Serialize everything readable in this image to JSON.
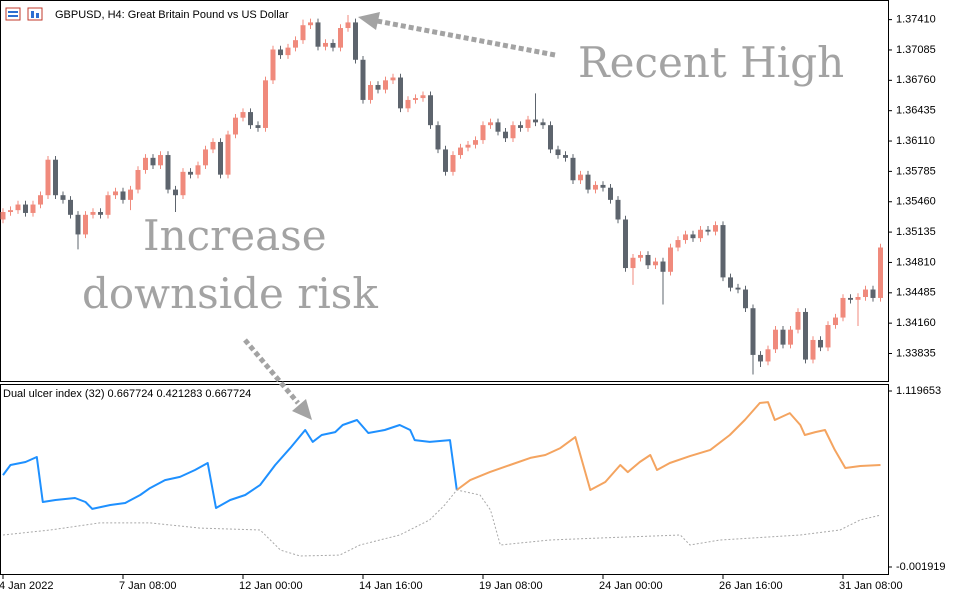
{
  "chart_data": [
    {
      "type": "candlestick",
      "title": "GBPUSD, H4:  Great Britain Pound vs US Dollar",
      "annotations": [
        "Recent High",
        "Increase",
        "downside risk"
      ],
      "up_color": "#f08a7c",
      "down_color": "#5d646d",
      "categories": [
        "4 Jan 2022",
        null,
        null,
        null,
        null,
        null,
        null,
        null,
        null,
        null,
        null,
        null,
        null,
        null,
        null,
        null,
        "7 Jan 08:00",
        null,
        null,
        null,
        null,
        null,
        null,
        null,
        null,
        null,
        null,
        null,
        null,
        null,
        null,
        null,
        "12 Jan 00:00",
        null,
        null,
        null,
        null,
        null,
        null,
        null,
        null,
        null,
        null,
        null,
        null,
        null,
        null,
        null,
        "14 Jan 16:00",
        null,
        null,
        null,
        null,
        null,
        null,
        null,
        null,
        null,
        null,
        null,
        null,
        null,
        null,
        null,
        "19 Jan 08:00",
        null,
        null,
        null,
        null,
        null,
        null,
        null,
        null,
        null,
        null,
        null,
        null,
        null,
        null,
        null,
        "24 Jan 00:00",
        null,
        null,
        null,
        null,
        null,
        null,
        null,
        null,
        null,
        null,
        null,
        null,
        null,
        null,
        null,
        "26 Jan 16:00",
        null,
        null,
        null,
        null,
        null,
        null,
        null,
        null,
        null,
        null,
        null,
        null,
        null,
        null,
        null,
        "31 Jan 08:00",
        null,
        null,
        null,
        null,
        null
      ],
      "open": [
        1.3527,
        1.3535,
        1.3537,
        1.3543,
        1.3534,
        1.3543,
        1.3553,
        1.3591,
        1.3553,
        1.3548,
        1.3532,
        1.3511,
        1.3532,
        1.3535,
        1.3532,
        1.3553,
        1.3557,
        1.3548,
        1.3559,
        1.358,
        1.3593,
        1.3585,
        1.3596,
        1.3559,
        1.3553,
        1.3578,
        1.3575,
        1.3585,
        1.3602,
        1.361,
        1.3575,
        1.3618,
        1.3636,
        1.3642,
        1.3628,
        1.3625,
        1.3676,
        1.3709,
        1.3703,
        1.3711,
        1.3719,
        1.3735,
        1.3738,
        1.3712,
        1.3716,
        1.3711,
        1.3732,
        1.3738,
        1.3698,
        1.3655,
        1.3671,
        1.3666,
        1.3676,
        1.3679,
        1.3646,
        1.3655,
        1.3657,
        1.366,
        1.3628,
        1.3602,
        1.3578,
        1.3596,
        1.3604,
        1.3607,
        1.3612,
        1.3628,
        1.3631,
        1.3621,
        1.3614,
        1.3628,
        1.3625,
        1.3634,
        1.3631,
        1.3628,
        1.3602,
        1.3596,
        1.3593,
        1.3569,
        1.3575,
        1.3559,
        1.3564,
        1.3561,
        1.3548,
        1.3527,
        1.3475,
        1.3486,
        1.3489,
        1.3478,
        1.3482,
        1.3471,
        1.3497,
        1.3505,
        1.3511,
        1.3507,
        1.3516,
        1.3514,
        1.3521,
        1.3465,
        1.3454,
        1.3452,
        1.3432,
        1.3382,
        1.3375,
        1.3388,
        1.3409,
        1.3393,
        1.3409,
        1.3428,
        1.3377,
        1.3398,
        1.339,
        1.3414,
        1.3422,
        1.3443,
        1.3441,
        1.3444,
        1.3452,
        1.3443
      ],
      "high": [
        1.3539,
        1.3541,
        1.3547,
        1.3547,
        1.3547,
        1.3557,
        1.3595,
        1.3595,
        1.3557,
        1.3552,
        1.3536,
        1.3536,
        1.3539,
        1.3539,
        1.3557,
        1.3561,
        1.3561,
        1.3563,
        1.3584,
        1.3597,
        1.3597,
        1.36,
        1.36,
        1.3563,
        1.3582,
        1.3582,
        1.3589,
        1.3606,
        1.3614,
        1.3614,
        1.3622,
        1.364,
        1.3646,
        1.3646,
        1.3632,
        1.368,
        1.3713,
        1.3713,
        1.3715,
        1.3723,
        1.3741,
        1.3742,
        1.3742,
        1.372,
        1.372,
        1.3736,
        1.3746,
        1.3742,
        1.3702,
        1.3675,
        1.3675,
        1.368,
        1.3683,
        1.3683,
        1.3659,
        1.3661,
        1.3664,
        1.3664,
        1.3632,
        1.3606,
        1.36,
        1.3608,
        1.3611,
        1.3616,
        1.3632,
        1.3635,
        1.3635,
        1.3625,
        1.3632,
        1.3632,
        1.3638,
        1.3662,
        1.3635,
        1.3632,
        1.3606,
        1.36,
        1.3597,
        1.3579,
        1.3579,
        1.3568,
        1.3568,
        1.3565,
        1.3552,
        1.3531,
        1.349,
        1.3493,
        1.3493,
        1.3486,
        1.3486,
        1.3501,
        1.3509,
        1.3515,
        1.3515,
        1.352,
        1.352,
        1.3525,
        1.3525,
        1.3469,
        1.3458,
        1.3456,
        1.3436,
        1.3386,
        1.3392,
        1.3413,
        1.3413,
        1.3413,
        1.3432,
        1.3432,
        1.3402,
        1.3402,
        1.3418,
        1.3426,
        1.3447,
        1.3447,
        1.3448,
        1.3456,
        1.3456,
        1.3501
      ],
      "low": [
        1.3523,
        1.3531,
        1.3533,
        1.353,
        1.353,
        1.3539,
        1.3549,
        1.3549,
        1.3544,
        1.3528,
        1.3495,
        1.3507,
        1.3528,
        1.3528,
        1.3528,
        1.3549,
        1.3544,
        1.3537,
        1.3555,
        1.3576,
        1.3581,
        1.3581,
        1.3555,
        1.3535,
        1.3549,
        1.3571,
        1.3571,
        1.3581,
        1.3598,
        1.3571,
        1.3571,
        1.3614,
        1.3632,
        1.3624,
        1.3621,
        1.3621,
        1.3672,
        1.3699,
        1.3699,
        1.3707,
        1.3715,
        1.3731,
        1.3708,
        1.3708,
        1.3707,
        1.3707,
        1.3728,
        1.3694,
        1.3651,
        1.3651,
        1.3662,
        1.3662,
        1.3672,
        1.3642,
        1.3642,
        1.3651,
        1.3653,
        1.3624,
        1.3598,
        1.3574,
        1.3574,
        1.3592,
        1.36,
        1.3603,
        1.3608,
        1.3624,
        1.3617,
        1.361,
        1.361,
        1.3621,
        1.3621,
        1.3627,
        1.3624,
        1.3598,
        1.3592,
        1.3589,
        1.3565,
        1.3565,
        1.3555,
        1.3555,
        1.3557,
        1.3544,
        1.3523,
        1.3471,
        1.3457,
        1.3482,
        1.3474,
        1.3474,
        1.3436,
        1.3467,
        1.3493,
        1.3501,
        1.3503,
        1.3503,
        1.351,
        1.351,
        1.3461,
        1.345,
        1.3448,
        1.3428,
        1.3361,
        1.3369,
        1.3371,
        1.3384,
        1.3389,
        1.3389,
        1.3405,
        1.3373,
        1.3373,
        1.3386,
        1.3386,
        1.341,
        1.3418,
        1.3437,
        1.3413,
        1.344,
        1.3439,
        1.3439
      ],
      "close": [
        1.3535,
        1.3537,
        1.3543,
        1.3534,
        1.3543,
        1.3553,
        1.3591,
        1.3553,
        1.3548,
        1.3532,
        1.3511,
        1.3532,
        1.3535,
        1.3532,
        1.3553,
        1.3557,
        1.3548,
        1.3559,
        1.358,
        1.3593,
        1.3585,
        1.3596,
        1.3559,
        1.3553,
        1.3578,
        1.3575,
        1.3585,
        1.3602,
        1.361,
        1.3575,
        1.3618,
        1.3636,
        1.3642,
        1.3628,
        1.3625,
        1.3676,
        1.3709,
        1.3703,
        1.3711,
        1.3719,
        1.3735,
        1.3738,
        1.3712,
        1.3716,
        1.3711,
        1.3732,
        1.3738,
        1.3698,
        1.3655,
        1.3671,
        1.3666,
        1.3676,
        1.3679,
        1.3646,
        1.3655,
        1.3657,
        1.366,
        1.3628,
        1.3602,
        1.3578,
        1.3596,
        1.3604,
        1.3607,
        1.3612,
        1.3628,
        1.3631,
        1.3621,
        1.3614,
        1.3628,
        1.3625,
        1.3634,
        1.3631,
        1.3628,
        1.3602,
        1.3596,
        1.3593,
        1.3569,
        1.3575,
        1.3559,
        1.3564,
        1.3561,
        1.3548,
        1.3527,
        1.3475,
        1.3486,
        1.3489,
        1.3478,
        1.3482,
        1.3471,
        1.3497,
        1.3505,
        1.3511,
        1.3507,
        1.3516,
        1.3514,
        1.3521,
        1.3465,
        1.3454,
        1.3452,
        1.3432,
        1.3382,
        1.3375,
        1.3388,
        1.3409,
        1.3393,
        1.3409,
        1.3428,
        1.3377,
        1.3398,
        1.339,
        1.3414,
        1.3422,
        1.3443,
        1.3441,
        1.3444,
        1.3452,
        1.3443,
        1.3497
      ],
      "ylim": [
        1.3353,
        1.3762
      ],
      "yticks": [
        {
          "value": 1.3741,
          "label": "1.37410"
        },
        1.37085,
        {
          "value": 1.3676,
          "label": "1.36760"
        },
        1.36435,
        {
          "value": 1.3611,
          "label": "1.36110"
        },
        1.35785,
        {
          "value": 1.3546,
          "label": "1.35460"
        },
        1.35135,
        {
          "value": 1.3481,
          "label": "1.34810"
        },
        1.34485,
        {
          "value": 1.3416,
          "label": "1.34160"
        },
        1.33835
      ],
      "grid": false
    },
    {
      "type": "line",
      "title": "Dual ulcer index (32) 0.667724 0.421283 0.667724",
      "xlim": [
        -0.4,
        118
      ],
      "ylim": [
        -0.053,
        1.1643
      ],
      "yticks": [
        1.119653,
        -0.001919
      ],
      "series": [
        {
          "color": "#1e90ff",
          "dash": false,
          "x": [
            0,
            1,
            3,
            4.5,
            5.3,
            7,
            9.6,
            11,
            11.9,
            14.3,
            16.3,
            18.3,
            19.6,
            21.6,
            23.6,
            25.6,
            27.3,
            28.4,
            30.3,
            32.3,
            34.3,
            36.3,
            38.3,
            40.3,
            41.3,
            42.5,
            44.3,
            45.3,
            47.2,
            48.7,
            50.9,
            52.9,
            54.3,
            54.9,
            56.9,
            59.6,
            60.5
          ],
          "values": [
            0.584,
            0.648,
            0.667,
            0.699,
            0.412,
            0.425,
            0.438,
            0.412,
            0.368,
            0.393,
            0.406,
            0.457,
            0.501,
            0.552,
            0.572,
            0.616,
            0.661,
            0.374,
            0.425,
            0.457,
            0.521,
            0.648,
            0.756,
            0.871,
            0.795,
            0.839,
            0.858,
            0.903,
            0.935,
            0.852,
            0.871,
            0.903,
            0.871,
            0.807,
            0.795,
            0.807,
            0.489
          ]
        },
        {
          "color": "#f4a460",
          "dash": false,
          "x": [
            60.5,
            62.3,
            64.9,
            67.6,
            70.3,
            72.3,
            74.3,
            76.3,
            78.3,
            80.3,
            82.3,
            83.3,
            84.9,
            86.3,
            87.2,
            88.9,
            91.6,
            94.3,
            96.9,
            98.9,
            100.9,
            102,
            102.9,
            104.9,
            106.3,
            106.9,
            108.3,
            109.6,
            110.9,
            112.3,
            114.3,
            117
          ],
          "values": [
            0.489,
            0.552,
            0.603,
            0.648,
            0.693,
            0.712,
            0.756,
            0.826,
            0.489,
            0.54,
            0.648,
            0.603,
            0.667,
            0.712,
            0.616,
            0.661,
            0.705,
            0.744,
            0.839,
            0.935,
            1.043,
            1.049,
            0.935,
            0.979,
            0.903,
            0.839,
            0.858,
            0.871,
            0.744,
            0.629,
            0.642,
            0.648
          ]
        },
        {
          "color": "#a9a9a9",
          "dash": true,
          "x": [
            0,
            6.3,
            12.9,
            19.6,
            26.3,
            34.3,
            37,
            39.6,
            44.9,
            47.6,
            52.9,
            56.9,
            58.9,
            60.5,
            63.6,
            65,
            66.3,
            72.9,
            79.6,
            90.3,
            91.6,
            95.6,
            106.3,
            111.6,
            114.3,
            117
          ],
          "values": [
            0.202,
            0.234,
            0.279,
            0.279,
            0.246,
            0.234,
            0.106,
            0.068,
            0.074,
            0.138,
            0.202,
            0.298,
            0.393,
            0.489,
            0.457,
            0.361,
            0.138,
            0.17,
            0.183,
            0.202,
            0.138,
            0.17,
            0.202,
            0.234,
            0.298,
            0.329
          ]
        }
      ],
      "grid": false
    }
  ]
}
